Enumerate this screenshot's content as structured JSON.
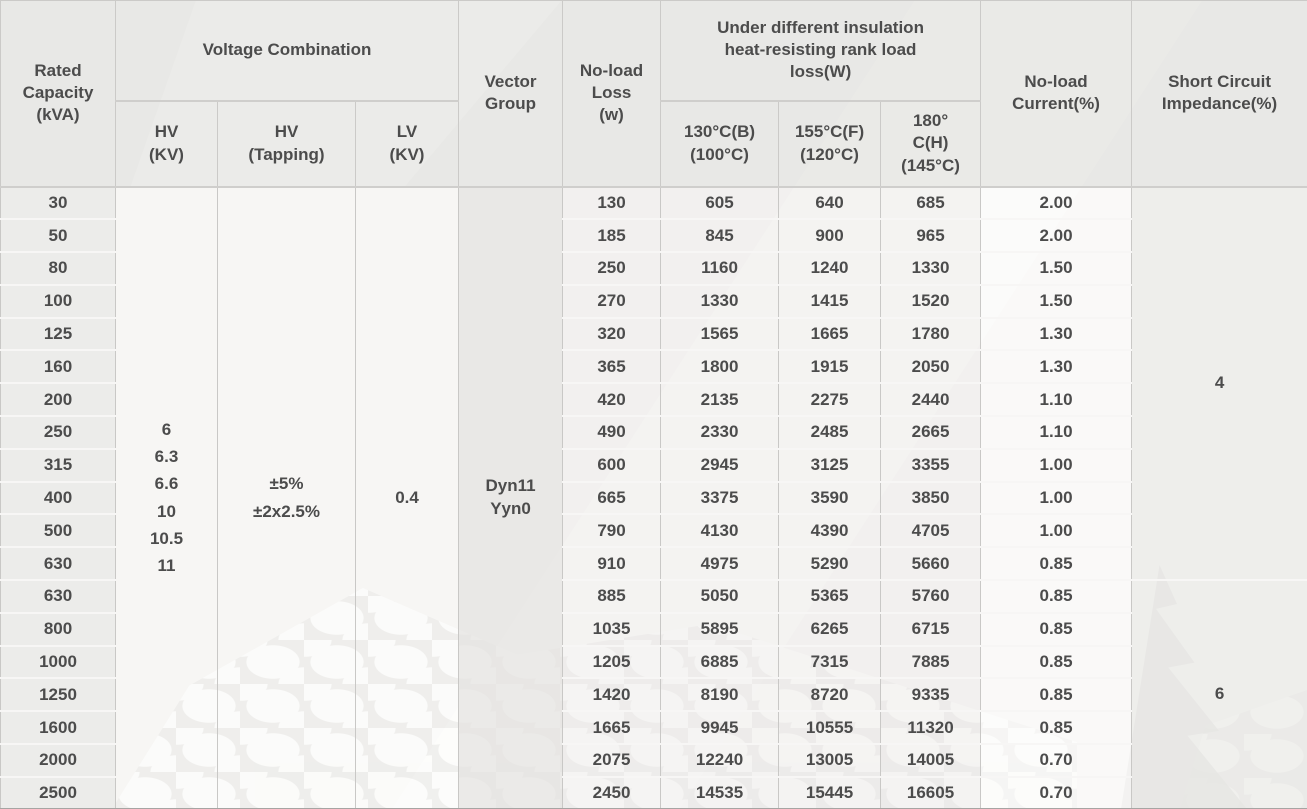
{
  "table": {
    "headers": {
      "rated_capacity": "Rated\nCapacity\n(kVA)",
      "voltage_combination": "Voltage Combination",
      "hv": "HV\n(KV)",
      "hv_tapping": "HV\n(Tapping)",
      "lv": "LV\n(KV)",
      "vector_group": "Vector\nGroup",
      "no_load_loss": "No-load\nLoss\n(w)",
      "load_loss_group": "Under different insulation\nheat-resisting rank load\nloss(W)",
      "loss_130": "130°C(B)\n(100°C)",
      "loss_155": "155°C(F)\n(120°C)",
      "loss_180": "180°\nC(H)\n(145°C)",
      "no_load_current": "No-load\nCurrent(%)",
      "short_circuit_impedance": "Short Circuit\nImpedance(%)"
    },
    "merged_cells": {
      "hv_kv": "6\n6.3\n6.6\n10\n10.5\n11",
      "hv_tapping": "±5%\n±2x2.5%",
      "lv_kv": "0.4",
      "vector_group": "Dyn11\nYyn0"
    },
    "impedance_groups": [
      {
        "value": "4",
        "row_span": 12
      },
      {
        "value": "6",
        "row_span": 7
      }
    ],
    "rows": [
      {
        "capacity": "30",
        "no_load_loss": "130",
        "loss_130": "605",
        "loss_155": "640",
        "loss_180": "685",
        "no_load_current": "2.00"
      },
      {
        "capacity": "50",
        "no_load_loss": "185",
        "loss_130": "845",
        "loss_155": "900",
        "loss_180": "965",
        "no_load_current": "2.00"
      },
      {
        "capacity": "80",
        "no_load_loss": "250",
        "loss_130": "1160",
        "loss_155": "1240",
        "loss_180": "1330",
        "no_load_current": "1.50"
      },
      {
        "capacity": "100",
        "no_load_loss": "270",
        "loss_130": "1330",
        "loss_155": "1415",
        "loss_180": "1520",
        "no_load_current": "1.50"
      },
      {
        "capacity": "125",
        "no_load_loss": "320",
        "loss_130": "1565",
        "loss_155": "1665",
        "loss_180": "1780",
        "no_load_current": "1.30"
      },
      {
        "capacity": "160",
        "no_load_loss": "365",
        "loss_130": "1800",
        "loss_155": "1915",
        "loss_180": "2050",
        "no_load_current": "1.30"
      },
      {
        "capacity": "200",
        "no_load_loss": "420",
        "loss_130": "2135",
        "loss_155": "2275",
        "loss_180": "2440",
        "no_load_current": "1.10"
      },
      {
        "capacity": "250",
        "no_load_loss": "490",
        "loss_130": "2330",
        "loss_155": "2485",
        "loss_180": "2665",
        "no_load_current": "1.10"
      },
      {
        "capacity": "315",
        "no_load_loss": "600",
        "loss_130": "2945",
        "loss_155": "3125",
        "loss_180": "3355",
        "no_load_current": "1.00"
      },
      {
        "capacity": "400",
        "no_load_loss": "665",
        "loss_130": "3375",
        "loss_155": "3590",
        "loss_180": "3850",
        "no_load_current": "1.00"
      },
      {
        "capacity": "500",
        "no_load_loss": "790",
        "loss_130": "4130",
        "loss_155": "4390",
        "loss_180": "4705",
        "no_load_current": "1.00"
      },
      {
        "capacity": "630",
        "no_load_loss": "910",
        "loss_130": "4975",
        "loss_155": "5290",
        "loss_180": "5660",
        "no_load_current": "0.85"
      },
      {
        "capacity": "630",
        "no_load_loss": "885",
        "loss_130": "5050",
        "loss_155": "5365",
        "loss_180": "5760",
        "no_load_current": "0.85"
      },
      {
        "capacity": "800",
        "no_load_loss": "1035",
        "loss_130": "5895",
        "loss_155": "6265",
        "loss_180": "6715",
        "no_load_current": "0.85"
      },
      {
        "capacity": "1000",
        "no_load_loss": "1205",
        "loss_130": "6885",
        "loss_155": "7315",
        "loss_180": "7885",
        "no_load_current": "0.85"
      },
      {
        "capacity": "1250",
        "no_load_loss": "1420",
        "loss_130": "8190",
        "loss_155": "8720",
        "loss_180": "9335",
        "no_load_current": "0.85"
      },
      {
        "capacity": "1600",
        "no_load_loss": "1665",
        "loss_130": "9945",
        "loss_155": "10555",
        "loss_180": "11320",
        "no_load_current": "0.85"
      },
      {
        "capacity": "2000",
        "no_load_loss": "2075",
        "loss_130": "12240",
        "loss_155": "13005",
        "loss_180": "14005",
        "no_load_current": "0.70"
      },
      {
        "capacity": "2500",
        "no_load_loss": "2450",
        "loss_130": "14535",
        "loss_155": "15445",
        "loss_180": "16605",
        "no_load_current": "0.70"
      }
    ]
  },
  "colors": {
    "header_bg": "#e8e7e5",
    "cell_gray": "#f0efed",
    "cell_white": "#fcfcfb",
    "text": "#4c4c4c",
    "grid_line": "#c9c8c6",
    "watermark_gray": "#d2d1cf",
    "bottom_bar": "#a6a5a3"
  }
}
